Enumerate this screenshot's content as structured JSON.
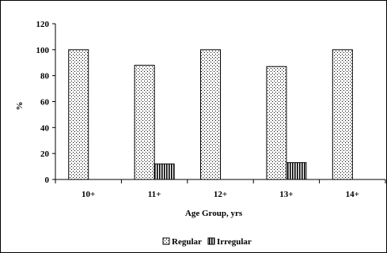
{
  "chart_data": {
    "type": "bar",
    "xlabel": "Age Group, yrs",
    "ylabel": "%",
    "categories": [
      "10+",
      "11+",
      "12+",
      "13+",
      "14+"
    ],
    "ylim": [
      0,
      120
    ],
    "yticks": [
      0,
      20,
      40,
      60,
      80,
      100,
      120
    ],
    "grid": false,
    "legend_position": "bottom",
    "series": [
      {
        "name": "Regular",
        "values": [
          100,
          88,
          100,
          87,
          100
        ],
        "pattern": "dots",
        "color": "#000000"
      },
      {
        "name": "Irregular",
        "values": [
          null,
          12,
          null,
          13,
          null
        ],
        "pattern": "vertical-stripes",
        "color": "#000000"
      }
    ]
  }
}
